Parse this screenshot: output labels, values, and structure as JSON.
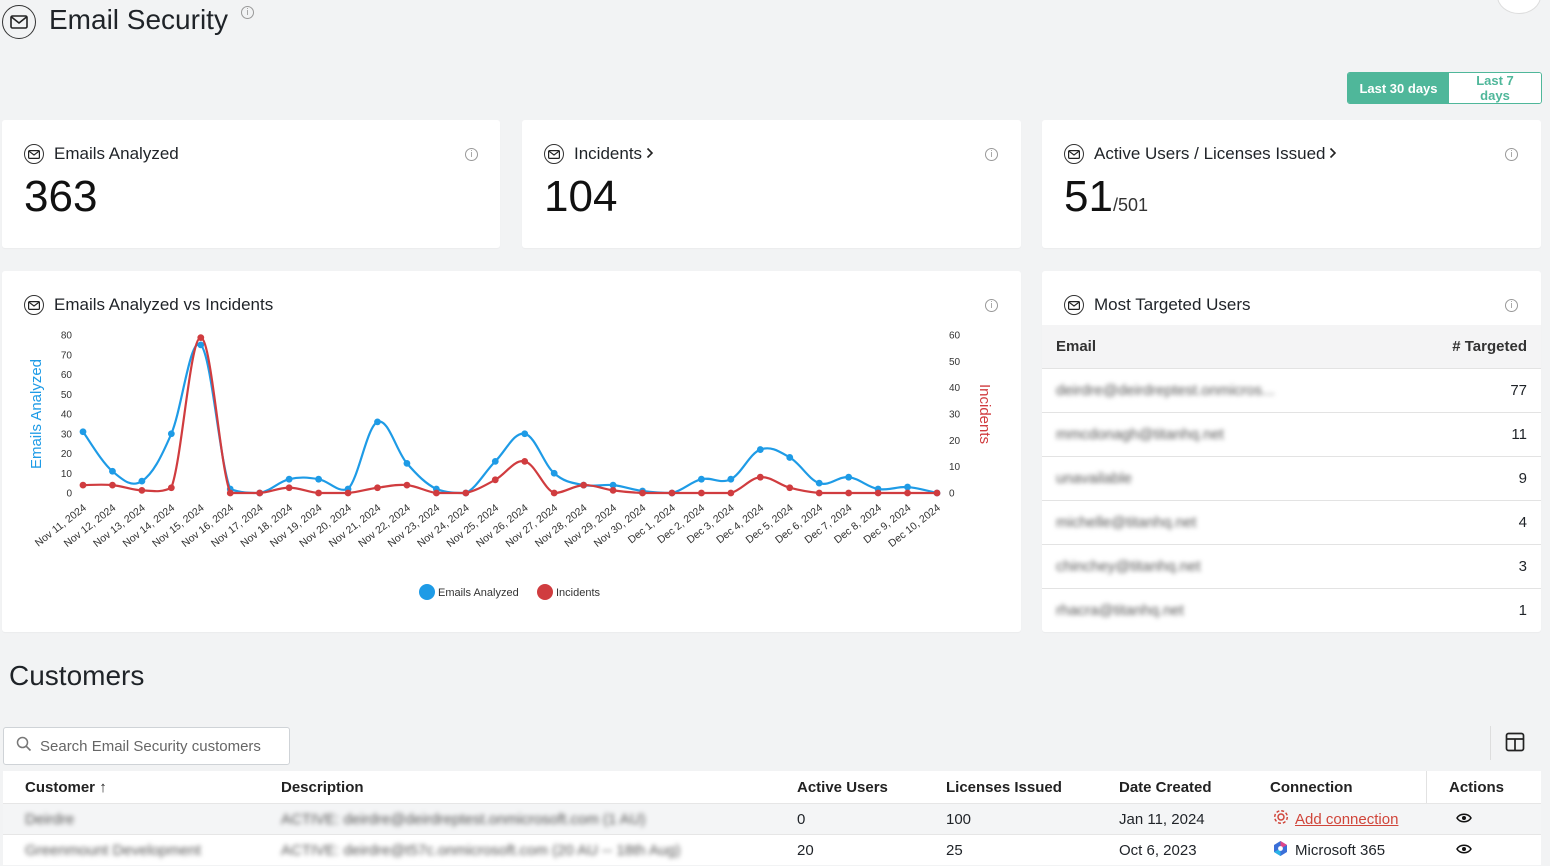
{
  "header": {
    "title": "Email Security"
  },
  "range_toggle": {
    "active": "Last 30 days",
    "inactive": "Last 7 days"
  },
  "kpis": {
    "emails_analyzed": {
      "label": "Emails Analyzed",
      "value": "363"
    },
    "incidents": {
      "label": "Incidents",
      "value": "104"
    },
    "active_users": {
      "label": "Active Users / Licenses Issued",
      "value": "51",
      "total": "/501"
    }
  },
  "chart_card": {
    "title": "Emails Analyzed vs Incidents"
  },
  "chart_data": {
    "type": "line",
    "title": "Emails Analyzed vs Incidents",
    "x": [
      "Nov 11, 2024",
      "Nov 12, 2024",
      "Nov 13, 2024",
      "Nov 14, 2024",
      "Nov 15, 2024",
      "Nov 16, 2024",
      "Nov 17, 2024",
      "Nov 18, 2024",
      "Nov 19, 2024",
      "Nov 20, 2024",
      "Nov 21, 2024",
      "Nov 22, 2024",
      "Nov 23, 2024",
      "Nov 24, 2024",
      "Nov 25, 2024",
      "Nov 26, 2024",
      "Nov 27, 2024",
      "Nov 28, 2024",
      "Nov 29, 2024",
      "Nov 30, 2024",
      "Dec 1, 2024",
      "Dec 2, 2024",
      "Dec 3, 2024",
      "Dec 4, 2024",
      "Dec 5, 2024",
      "Dec 6, 2024",
      "Dec 7, 2024",
      "Dec 8, 2024",
      "Dec 9, 2024",
      "Dec 10, 2024"
    ],
    "series": [
      {
        "name": "Emails Analyzed",
        "axis": "left",
        "color": "#1e9be6",
        "values": [
          31,
          11,
          6,
          30,
          75,
          2,
          0,
          7,
          7,
          2,
          36,
          15,
          2,
          0,
          16,
          30,
          10,
          4,
          4,
          1,
          0,
          7,
          7,
          22,
          18,
          5,
          8,
          2,
          3,
          0
        ]
      },
      {
        "name": "Incidents",
        "axis": "right",
        "color": "#d03c3f",
        "values": [
          3,
          3,
          1,
          2,
          59,
          0,
          0,
          2,
          0,
          0,
          2,
          3,
          0,
          0,
          5,
          12,
          0,
          3,
          1,
          0,
          0,
          0,
          0,
          6,
          2,
          0,
          0,
          0,
          0,
          0
        ]
      }
    ],
    "ylabel": "Emails Analyzed",
    "ylim": [
      0,
      80
    ],
    "yticks": [
      0,
      10,
      20,
      30,
      40,
      50,
      60,
      70,
      80
    ],
    "y2label": "Incidents",
    "y2lim": [
      0,
      60
    ],
    "y2ticks": [
      0,
      10,
      20,
      30,
      40,
      50,
      60
    ],
    "legend": "bottom-center",
    "grid": false
  },
  "targeted": {
    "title": "Most Targeted Users",
    "col_email": "Email",
    "col_count": "# Targeted",
    "rows": [
      {
        "email": "deirdre@deirdreptest.onmicros...",
        "count": "77"
      },
      {
        "email": "mmcdonagh@titanhq.net",
        "count": "11"
      },
      {
        "email": "unavailable",
        "count": "9"
      },
      {
        "email": "michelle@titanhq.net",
        "count": "4"
      },
      {
        "email": "chinchey@titanhq.net",
        "count": "3"
      },
      {
        "email": "rhacra@titanhq.net",
        "count": "1"
      }
    ]
  },
  "customers": {
    "title": "Customers",
    "search_placeholder": "Search Email Security customers",
    "columns": {
      "customer": "Customer",
      "sort": "↑",
      "description": "Description",
      "active_users": "Active Users",
      "licenses": "Licenses Issued",
      "date": "Date Created",
      "connection": "Connection",
      "actions": "Actions"
    },
    "rows": [
      {
        "customer": "Deirdre",
        "description": "ACTIVE: deirdre@deirdreptest.onmicrosoft.com (1 AU)",
        "active_users": "0",
        "licenses": "100",
        "date": "Jan 11, 2024",
        "connection": "Add connection"
      },
      {
        "customer": "Greenmount Development",
        "description": "ACTIVE: deirdre@t57c.onmicrosoft.com (20 AU -- 18th Aug)",
        "active_users": "20",
        "licenses": "25",
        "date": "Oct 6, 2023",
        "connection": "Microsoft 365"
      }
    ]
  }
}
